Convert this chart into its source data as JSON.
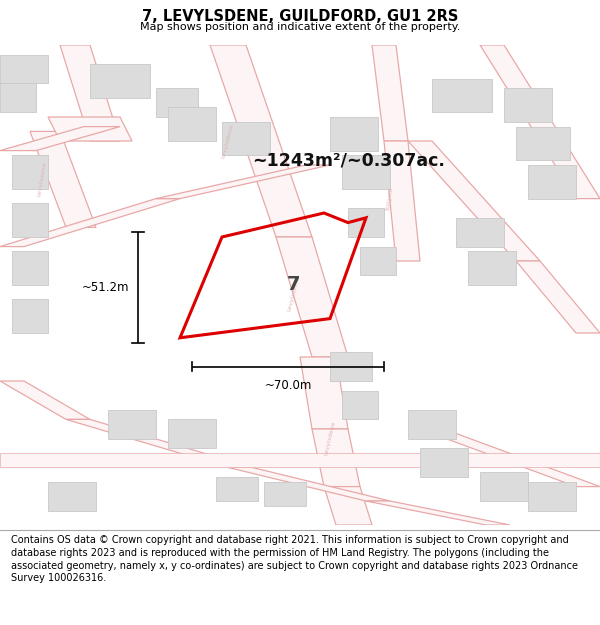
{
  "title": "7, LEVYLSDENE, GUILDFORD, GU1 2RS",
  "subtitle": "Map shows position and indicative extent of the property.",
  "area_text": "~1243m²/~0.307ac.",
  "number_label": "7",
  "dim_width": "~70.0m",
  "dim_height": "~51.2m",
  "footer_text": "Contains OS data © Crown copyright and database right 2021. This information is subject to Crown copyright and database rights 2023 and is reproduced with the permission of HM Land Registry. The polygons (including the associated geometry, namely x, y co-ordinates) are subject to Crown copyright and database rights 2023 Ordnance Survey 100026316.",
  "bg_color": "#ffffff",
  "map_bg": "#ffffff",
  "road_color": "#f2c4c4",
  "road_fill": "#faf0f0",
  "building_color": "#dcdcdc",
  "building_outline": "#cccccc",
  "plot_outline": "#dd0000",
  "title_color": "#000000",
  "dim_color": "#000000",
  "footer_color": "#000000",
  "road_label_color": "#d4a0a0",
  "road_lw": 1.0,
  "plot_lw": 2.2
}
